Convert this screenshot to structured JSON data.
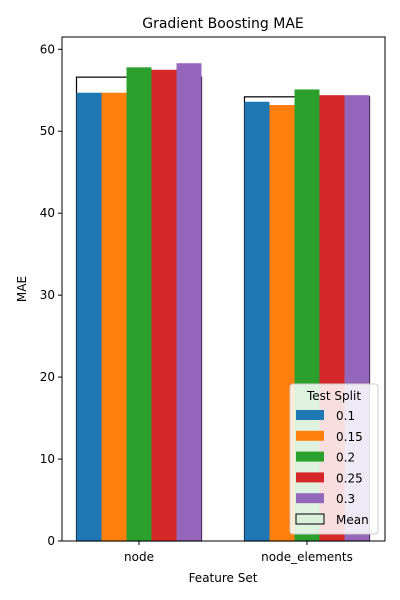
{
  "chart_data": {
    "type": "bar",
    "title": "Gradient Boosting MAE",
    "xlabel": "Feature Set",
    "ylabel": "MAE",
    "categories": [
      "node",
      "node_elements"
    ],
    "ylim": [
      0,
      61.5
    ],
    "yticks": [
      0,
      10,
      20,
      30,
      40,
      50,
      60
    ],
    "series": [
      {
        "name": "0.1",
        "color": "#1f77b4",
        "values": [
          54.7,
          53.6
        ]
      },
      {
        "name": "0.15",
        "color": "#ff7f0e",
        "values": [
          54.7,
          53.2
        ]
      },
      {
        "name": "0.2",
        "color": "#2ca02c",
        "values": [
          57.8,
          55.1
        ]
      },
      {
        "name": "0.25",
        "color": "#d62728",
        "values": [
          57.5,
          54.4
        ]
      },
      {
        "name": "0.3",
        "color": "#9467bd",
        "values": [
          58.3,
          54.4
        ]
      }
    ],
    "mean": {
      "name": "Mean",
      "values": [
        56.6,
        54.2
      ],
      "fill": "#d9eedb",
      "edge": "#000000"
    },
    "legend": {
      "title": "Test Split",
      "placement": "lower-right"
    },
    "grid": false
  }
}
